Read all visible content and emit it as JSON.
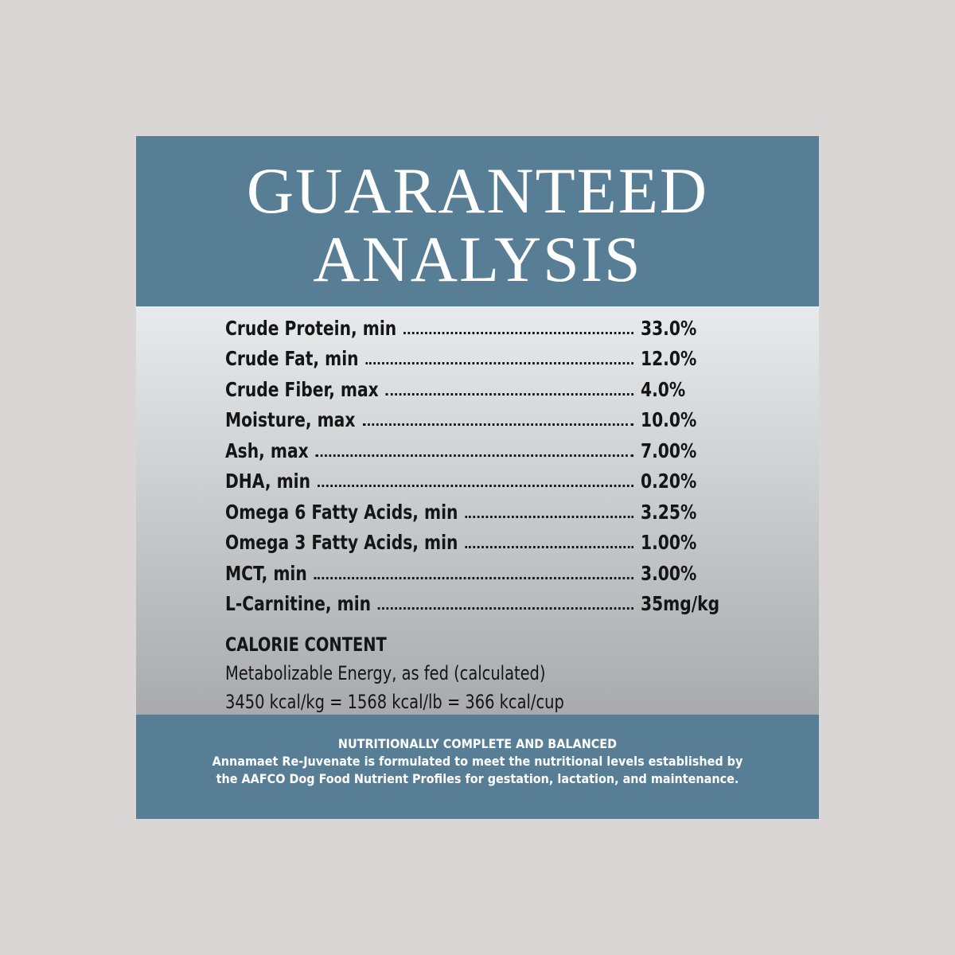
{
  "header": {
    "title_line1": "GUARANTEED",
    "title_line2": "ANALYSIS"
  },
  "table": {
    "rows": [
      [
        "Crude Protein, min",
        "33.0%"
      ],
      [
        "Crude Fat, min",
        "12.0%"
      ],
      [
        "Crude Fiber, max",
        "4.0%"
      ],
      [
        "Moisture, max",
        "10.0%"
      ],
      [
        "Ash, max",
        "7.00%"
      ],
      [
        "DHA, min",
        "0.20%"
      ],
      [
        "Omega 6 Fatty Acids, min",
        "3.25%"
      ],
      [
        "Omega 3 Fatty Acids, min",
        "1.00%"
      ],
      [
        "MCT, min",
        "3.00%"
      ],
      [
        "L-Carnitine, min",
        "35mg/kg"
      ]
    ]
  },
  "calorie": {
    "heading": "CALORIE CONTENT",
    "line1": "Metabolizable Energy, as fed (calculated)",
    "line2": "3450 kcal/kg = 1568 kcal/lb = 366 kcal/cup"
  },
  "footer": {
    "heading": "NUTRITIONALLY COMPLETE AND BALANCED",
    "line1": "Annamaet Re-Juvenate is formulated to meet the nutritional levels established by",
    "line2": "the AAFCO Dog Food Nutrient Profiles for gestation, lactation, and maintenance."
  }
}
